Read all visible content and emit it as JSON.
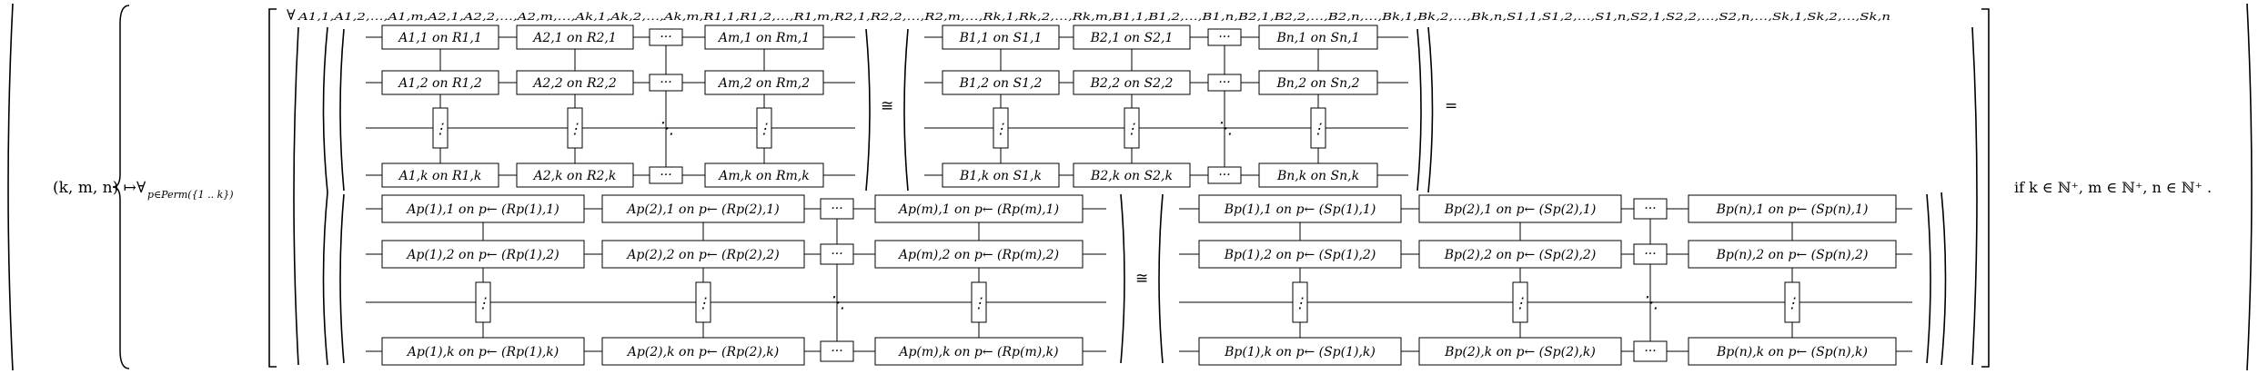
{
  "formula": {
    "lhs": "(k, m, n) ↦",
    "forall_perm": "∀",
    "perm_subscript": "p∈Perm({1 .. k})",
    "forall_vars": "∀",
    "forall_vars_subscript": "A1,1,A1,2,…,A1,m,A2,1,A2,2,…,A2,m,…,Ak,1,Ak,2,…,Ak,m,R1,1,R1,2,…,R1,m,R2,1,R2,2,…,R2,m,…,Rk,1,Rk,2,…,Rk,m,B1,1,B1,2,…,B1,n,B2,1,B2,2,…,B2,n,…,Bk,1,Bk,2,…,Bk,n,S1,1,S1,2,…,S1,n,S2,1,S2,2,…,S2,n,…,Sk,1,Sk,2,…,Sk,n",
    "iso_symbol": "≅",
    "equals_symbol": "=",
    "condition": "if k ∈ ℕ⁺, m ∈ ℕ⁺, n ∈ ℕ⁺ .",
    "ellipsis_h": "···",
    "ellipsis_d": "⋱",
    "ellipsis_v": "⋮"
  },
  "diagrams": {
    "top_left": {
      "rows": [
        [
          "A1,1 on R1,1",
          "A2,1 on R2,1",
          "Am,1 on Rm,1"
        ],
        [
          "A1,2 on R1,2",
          "A2,2 on R2,2",
          "Am,2 on Rm,2"
        ],
        [
          "A1,k on R1,k",
          "A2,k on R2,k",
          "Am,k on Rm,k"
        ]
      ]
    },
    "top_right": {
      "rows": [
        [
          "B1,1 on S1,1",
          "B2,1 on S2,1",
          "Bn,1 on Sn,1"
        ],
        [
          "B1,2 on S1,2",
          "B2,2 on S2,2",
          "Bn,2 on Sn,2"
        ],
        [
          "B1,k on S1,k",
          "B2,k on S2,k",
          "Bn,k on Sn,k"
        ]
      ]
    },
    "bottom_left": {
      "rows": [
        [
          "Ap(1),1 on p← (Rp(1),1)",
          "Ap(2),1 on p← (Rp(2),1)",
          "Ap(m),1 on p← (Rp(m),1)"
        ],
        [
          "Ap(1),2 on p← (Rp(1),2)",
          "Ap(2),2 on p← (Rp(2),2)",
          "Ap(m),2 on p← (Rp(m),2)"
        ],
        [
          "Ap(1),k on p← (Rp(1),k)",
          "Ap(2),k on p← (Rp(2),k)",
          "Ap(m),k on p← (Rp(m),k)"
        ]
      ]
    },
    "bottom_right": {
      "rows": [
        [
          "Bp(1),1 on p← (Sp(1),1)",
          "Bp(2),1 on p← (Sp(2),1)",
          "Bp(n),1 on p← (Sp(n),1)"
        ],
        [
          "Bp(1),2 on p← (Sp(1),2)",
          "Bp(2),2 on p← (Sp(2),2)",
          "Bp(n),2 on p← (Sp(n),2)"
        ],
        [
          "Bp(1),k on p← (Sp(1),k)",
          "Bp(2),k on p← (Sp(2),k)",
          "Bp(n),k on p← (Sp(n),k)"
        ]
      ]
    }
  }
}
